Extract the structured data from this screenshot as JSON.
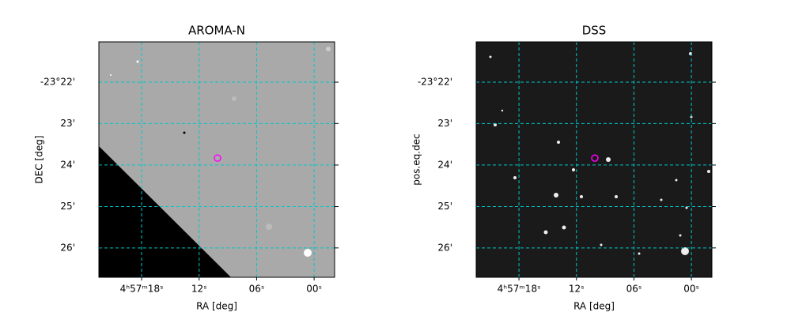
{
  "chart_data": [
    {
      "type": "image",
      "title": "AROMA-N",
      "x_label": "RA [deg]",
      "y_label": "DEC [deg]",
      "background": "#a9a9a9",
      "xlim": [
        74.3436,
        74.2411
      ],
      "ylim": [
        -23.4451,
        -23.3505
      ],
      "xticks": [
        {
          "value": 74.325,
          "label": "4ʰ57ᵐ18ˢ"
        },
        {
          "value": 74.3,
          "label": "12ˢ"
        },
        {
          "value": 74.275,
          "label": "06ˢ"
        },
        {
          "value": 74.25,
          "label": "00ˢ"
        }
      ],
      "yticks": [
        {
          "value": -23.3667,
          "label": "-23°22'"
        },
        {
          "value": -23.3833,
          "label": "23'"
        },
        {
          "value": -23.4,
          "label": "24'"
        },
        {
          "value": -23.4167,
          "label": "25'"
        },
        {
          "value": -23.4333,
          "label": "26'"
        }
      ],
      "grid": true,
      "grid_color": "#00c8c8",
      "marker": {
        "x": 74.292,
        "y": -23.3972,
        "color": "#ff00ff"
      }
    },
    {
      "type": "image",
      "title": "DSS",
      "x_label": "RA [deg]",
      "y_label": "pos.eq.dec",
      "background": "#1a1a1a",
      "xlim": [
        74.3436,
        74.2411
      ],
      "ylim": [
        -23.4451,
        -23.3505
      ],
      "xticks": [
        {
          "value": 74.325,
          "label": "4ʰ57ᵐ18ˢ"
        },
        {
          "value": 74.3,
          "label": "12ˢ"
        },
        {
          "value": 74.275,
          "label": "06ˢ"
        },
        {
          "value": 74.25,
          "label": "00ˢ"
        }
      ],
      "yticks": [
        {
          "value": -23.3667,
          "label": "-23°22'"
        },
        {
          "value": -23.3833,
          "label": "23'"
        },
        {
          "value": -23.4,
          "label": "24'"
        },
        {
          "value": -23.4167,
          "label": "25'"
        },
        {
          "value": -23.4333,
          "label": "26'"
        }
      ],
      "grid": true,
      "grid_color": "#00c8c8",
      "marker": {
        "x": 74.292,
        "y": -23.3972,
        "color": "#ff00ff"
      }
    }
  ]
}
